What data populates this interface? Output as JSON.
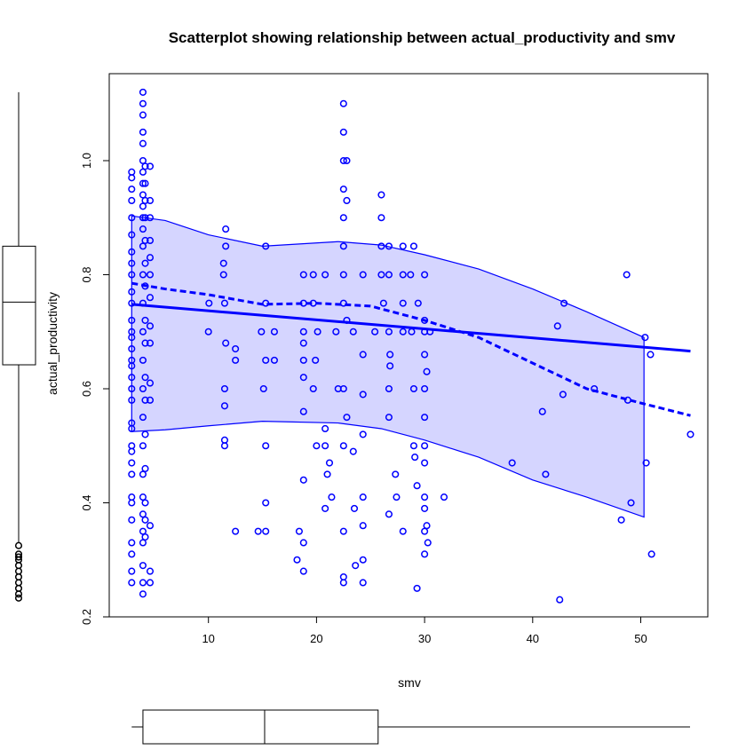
{
  "chart_data": {
    "type": "scatter",
    "title": "Scatterplot showing relationship between actual_productivity and smv",
    "xlabel": "smv",
    "ylabel": "actual_productivity",
    "xlim": [
      0,
      55
    ],
    "ylim": [
      0.2,
      1.12
    ],
    "xticks": [
      10,
      20,
      30,
      40,
      50
    ],
    "yticks": [
      0.2,
      0.4,
      0.6,
      0.8,
      1.0
    ],
    "ytick_labels": [
      "0.2",
      "0.4",
      "0.6",
      "0.8",
      "1.0"
    ],
    "xtick_labels": [
      "10",
      "20",
      "30",
      "40",
      "50"
    ],
    "grid": false,
    "colors": {
      "points": "#0000ff",
      "band_fill": "#d5d5ff",
      "box": "#000000"
    },
    "columns": [
      {
        "x": 2.9,
        "y": [
          0.26,
          0.28,
          0.31,
          0.33,
          0.37,
          0.4,
          0.41,
          0.45,
          0.47,
          0.49,
          0.5,
          0.53,
          0.54,
          0.58,
          0.6,
          0.62,
          0.64,
          0.65,
          0.67,
          0.69,
          0.7,
          0.72,
          0.75,
          0.77,
          0.8,
          0.82,
          0.84,
          0.87,
          0.9,
          0.93,
          0.95,
          0.97,
          0.98
        ]
      },
      {
        "x": 3.94,
        "y": [
          0.24,
          0.26,
          0.29,
          0.33,
          0.35,
          0.38,
          0.41,
          0.45,
          0.5,
          0.55,
          0.6,
          0.65,
          0.7,
          0.75,
          0.8,
          0.85,
          0.88,
          0.9,
          0.92,
          0.94,
          0.96,
          0.98,
          1.0,
          1.03,
          1.05,
          1.08,
          1.1,
          1.12
        ]
      },
      {
        "x": 4.15,
        "y": [
          0.34,
          0.37,
          0.4,
          0.46,
          0.52,
          0.58,
          0.62,
          0.68,
          0.72,
          0.78,
          0.82,
          0.86,
          0.9,
          0.93,
          0.96,
          0.99
        ]
      },
      {
        "x": 4.6,
        "y": [
          0.26,
          0.28,
          0.36,
          0.58,
          0.61,
          0.68,
          0.71,
          0.76,
          0.8,
          0.83,
          0.86,
          0.9,
          0.93,
          0.99
        ]
      }
    ],
    "points": [
      [
        10,
        0.7
      ],
      [
        10.05,
        0.75
      ],
      [
        11.4,
        0.8
      ],
      [
        11.4,
        0.82
      ],
      [
        11.5,
        0.75
      ],
      [
        11.5,
        0.6
      ],
      [
        11.5,
        0.57
      ],
      [
        11.5,
        0.51
      ],
      [
        11.5,
        0.5
      ],
      [
        11.6,
        0.88
      ],
      [
        11.6,
        0.85
      ],
      [
        11.6,
        0.68
      ],
      [
        12.5,
        0.65
      ],
      [
        12.5,
        0.67
      ],
      [
        12.5,
        0.35
      ],
      [
        14.6,
        0.35
      ],
      [
        14.9,
        0.7
      ],
      [
        15.1,
        0.6
      ],
      [
        15.3,
        0.5
      ],
      [
        15.3,
        0.4
      ],
      [
        15.3,
        0.85
      ],
      [
        15.3,
        0.75
      ],
      [
        15.3,
        0.65
      ],
      [
        15.3,
        0.35
      ],
      [
        16.1,
        0.7
      ],
      [
        16.1,
        0.65
      ],
      [
        18.2,
        0.3
      ],
      [
        18.4,
        0.35
      ],
      [
        18.8,
        0.8
      ],
      [
        18.8,
        0.75
      ],
      [
        18.8,
        0.7
      ],
      [
        18.8,
        0.68
      ],
      [
        18.8,
        0.65
      ],
      [
        18.8,
        0.62
      ],
      [
        18.8,
        0.56
      ],
      [
        18.8,
        0.44
      ],
      [
        18.8,
        0.33
      ],
      [
        18.8,
        0.28
      ],
      [
        19.7,
        0.8
      ],
      [
        19.7,
        0.75
      ],
      [
        19.7,
        0.6
      ],
      [
        19.9,
        0.65
      ],
      [
        20,
        0.5
      ],
      [
        20.1,
        0.7
      ],
      [
        20.8,
        0.8
      ],
      [
        20.8,
        0.53
      ],
      [
        20.8,
        0.5
      ],
      [
        20.8,
        0.39
      ],
      [
        21,
        0.45
      ],
      [
        21.2,
        0.47
      ],
      [
        21.4,
        0.41
      ],
      [
        21.8,
        0.7
      ],
      [
        22,
        0.6
      ],
      [
        22.5,
        1.1
      ],
      [
        22.5,
        1.05
      ],
      [
        22.5,
        1.0
      ],
      [
        22.5,
        0.95
      ],
      [
        22.5,
        0.9
      ],
      [
        22.5,
        0.85
      ],
      [
        22.5,
        0.8
      ],
      [
        22.5,
        0.75
      ],
      [
        22.5,
        0.6
      ],
      [
        22.5,
        0.5
      ],
      [
        22.5,
        0.35
      ],
      [
        22.5,
        0.27
      ],
      [
        22.5,
        0.26
      ],
      [
        22.8,
        1.0
      ],
      [
        22.8,
        0.93
      ],
      [
        22.8,
        0.72
      ],
      [
        22.8,
        0.55
      ],
      [
        23.4,
        0.7
      ],
      [
        23.4,
        0.49
      ],
      [
        23.5,
        0.39
      ],
      [
        23.6,
        0.29
      ],
      [
        24.3,
        0.8
      ],
      [
        24.3,
        0.66
      ],
      [
        24.3,
        0.59
      ],
      [
        24.3,
        0.52
      ],
      [
        24.3,
        0.41
      ],
      [
        24.3,
        0.36
      ],
      [
        24.3,
        0.3
      ],
      [
        24.3,
        0.26
      ],
      [
        25.4,
        0.7
      ],
      [
        26,
        0.94
      ],
      [
        26,
        0.9
      ],
      [
        26,
        0.85
      ],
      [
        26,
        0.8
      ],
      [
        26.2,
        0.75
      ],
      [
        26.7,
        0.85
      ],
      [
        26.7,
        0.8
      ],
      [
        26.7,
        0.7
      ],
      [
        26.7,
        0.6
      ],
      [
        26.7,
        0.55
      ],
      [
        26.7,
        0.38
      ],
      [
        26.8,
        0.66
      ],
      [
        26.8,
        0.64
      ],
      [
        27.3,
        0.45
      ],
      [
        27.4,
        0.41
      ],
      [
        28,
        0.85
      ],
      [
        28,
        0.8
      ],
      [
        28,
        0.75
      ],
      [
        28,
        0.7
      ],
      [
        28,
        0.35
      ],
      [
        28.7,
        0.8
      ],
      [
        28.8,
        0.7
      ],
      [
        29,
        0.85
      ],
      [
        29,
        0.6
      ],
      [
        29,
        0.5
      ],
      [
        29.1,
        0.48
      ],
      [
        29.3,
        0.43
      ],
      [
        29.3,
        0.25
      ],
      [
        29.4,
        0.75
      ],
      [
        30,
        0.8
      ],
      [
        30,
        0.72
      ],
      [
        30,
        0.7
      ],
      [
        30,
        0.66
      ],
      [
        30,
        0.6
      ],
      [
        30,
        0.55
      ],
      [
        30,
        0.5
      ],
      [
        30,
        0.47
      ],
      [
        30,
        0.41
      ],
      [
        30,
        0.39
      ],
      [
        30,
        0.35
      ],
      [
        30,
        0.31
      ],
      [
        30.2,
        0.63
      ],
      [
        30.2,
        0.36
      ],
      [
        30.3,
        0.33
      ],
      [
        30.5,
        0.7
      ],
      [
        31.8,
        0.41
      ],
      [
        38.1,
        0.47
      ],
      [
        40.9,
        0.56
      ],
      [
        41.2,
        0.45
      ],
      [
        42.3,
        0.71
      ],
      [
        42.5,
        0.23
      ],
      [
        42.8,
        0.59
      ],
      [
        42.9,
        0.75
      ],
      [
        45.7,
        0.6
      ],
      [
        48.2,
        0.37
      ],
      [
        48.7,
        0.8
      ],
      [
        48.8,
        0.58
      ],
      [
        49.1,
        0.4
      ],
      [
        50.4,
        0.69
      ],
      [
        50.5,
        0.47
      ],
      [
        50.9,
        0.66
      ],
      [
        51,
        0.31
      ],
      [
        54.6,
        0.52
      ]
    ],
    "regression_line": [
      [
        2.9,
        0.748
      ],
      [
        54.6,
        0.666
      ]
    ],
    "smoother": [
      [
        2.9,
        0.785
      ],
      [
        6,
        0.775
      ],
      [
        10,
        0.765
      ],
      [
        15,
        0.748
      ],
      [
        20,
        0.75
      ],
      [
        25,
        0.745
      ],
      [
        30,
        0.72
      ],
      [
        35,
        0.69
      ],
      [
        40,
        0.645
      ],
      [
        45,
        0.6
      ],
      [
        50,
        0.575
      ],
      [
        54.6,
        0.553
      ]
    ],
    "band_upper": [
      [
        2.9,
        0.903
      ],
      [
        6,
        0.895
      ],
      [
        10,
        0.87
      ],
      [
        15,
        0.85
      ],
      [
        22,
        0.858
      ],
      [
        26,
        0.852
      ],
      [
        30,
        0.835
      ],
      [
        35,
        0.81
      ],
      [
        40,
        0.775
      ],
      [
        45,
        0.735
      ],
      [
        50.3,
        0.69
      ]
    ],
    "band_lower": [
      [
        2.9,
        0.525
      ],
      [
        6,
        0.528
      ],
      [
        10,
        0.535
      ],
      [
        15,
        0.543
      ],
      [
        22,
        0.54
      ],
      [
        26,
        0.53
      ],
      [
        30,
        0.51
      ],
      [
        35,
        0.48
      ],
      [
        40,
        0.44
      ],
      [
        45,
        0.41
      ],
      [
        50.3,
        0.375
      ]
    ],
    "y_boxplot": {
      "whisker_low": 0.33,
      "q1": 0.642,
      "median": 0.752,
      "q3": 0.85,
      "whisker_high": 1.12,
      "outliers": [
        0.233,
        0.24,
        0.25,
        0.26,
        0.27,
        0.28,
        0.29,
        0.3,
        0.305,
        0.31,
        0.325
      ]
    },
    "x_boxplot": {
      "whisker_low": 2.9,
      "q1": 3.94,
      "median": 15.2,
      "q3": 25.7,
      "whisker_high": 54.56
    }
  }
}
